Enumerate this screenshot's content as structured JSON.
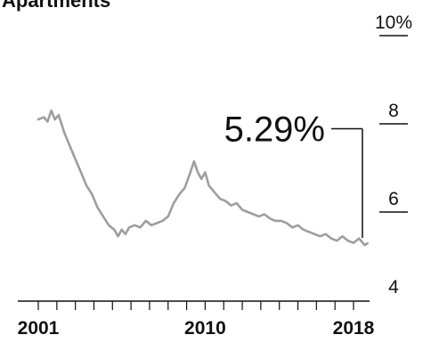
{
  "header": {
    "cut_title": "Apartments"
  },
  "chart_data": {
    "type": "line",
    "title": "",
    "subtitle": "Apartments",
    "xlabel": "",
    "ylabel": "",
    "x_tick_labels": [
      {
        "year": 2001,
        "label": "2001"
      },
      {
        "year": 2010,
        "label": "2010"
      },
      {
        "year": 2018,
        "label": "2018"
      }
    ],
    "y_tick_labels": [
      {
        "value": 10,
        "label": "10%"
      },
      {
        "value": 8,
        "label": "8"
      },
      {
        "value": 6,
        "label": "6"
      },
      {
        "value": 4,
        "label": "4"
      }
    ],
    "xlim": [
      2001,
      2019
    ],
    "ylim": [
      4,
      10
    ],
    "grid": false,
    "legend": "none",
    "line_color": "#9e9e9e",
    "annotation": {
      "label": "5.29%",
      "value": 5.29
    },
    "series": [
      {
        "values": [
          [
            2001.0,
            8.1
          ],
          [
            2001.3,
            8.15
          ],
          [
            2001.5,
            8.05
          ],
          [
            2001.7,
            8.3
          ],
          [
            2001.9,
            8.1
          ],
          [
            2002.1,
            8.2
          ],
          [
            2002.4,
            7.8
          ],
          [
            2002.7,
            7.5
          ],
          [
            2003.0,
            7.2
          ],
          [
            2003.3,
            6.9
          ],
          [
            2003.6,
            6.6
          ],
          [
            2003.9,
            6.4
          ],
          [
            2004.2,
            6.1
          ],
          [
            2004.5,
            5.9
          ],
          [
            2004.8,
            5.7
          ],
          [
            2005.1,
            5.6
          ],
          [
            2005.3,
            5.45
          ],
          [
            2005.5,
            5.6
          ],
          [
            2005.7,
            5.5
          ],
          [
            2005.9,
            5.65
          ],
          [
            2006.2,
            5.7
          ],
          [
            2006.5,
            5.65
          ],
          [
            2006.8,
            5.8
          ],
          [
            2007.1,
            5.7
          ],
          [
            2007.4,
            5.75
          ],
          [
            2007.7,
            5.8
          ],
          [
            2008.0,
            5.9
          ],
          [
            2008.3,
            6.2
          ],
          [
            2008.6,
            6.4
          ],
          [
            2008.9,
            6.55
          ],
          [
            2009.2,
            6.9
          ],
          [
            2009.4,
            7.15
          ],
          [
            2009.6,
            6.9
          ],
          [
            2009.8,
            6.75
          ],
          [
            2010.0,
            6.9
          ],
          [
            2010.2,
            6.6
          ],
          [
            2010.5,
            6.45
          ],
          [
            2010.8,
            6.3
          ],
          [
            2011.1,
            6.25
          ],
          [
            2011.4,
            6.15
          ],
          [
            2011.7,
            6.2
          ],
          [
            2012.0,
            6.05
          ],
          [
            2012.3,
            6.0
          ],
          [
            2012.6,
            5.95
          ],
          [
            2012.9,
            5.9
          ],
          [
            2013.2,
            5.95
          ],
          [
            2013.5,
            5.85
          ],
          [
            2013.8,
            5.8
          ],
          [
            2014.1,
            5.8
          ],
          [
            2014.4,
            5.75
          ],
          [
            2014.7,
            5.65
          ],
          [
            2015.0,
            5.7
          ],
          [
            2015.3,
            5.6
          ],
          [
            2015.6,
            5.55
          ],
          [
            2015.9,
            5.5
          ],
          [
            2016.2,
            5.45
          ],
          [
            2016.5,
            5.5
          ],
          [
            2016.8,
            5.4
          ],
          [
            2017.1,
            5.35
          ],
          [
            2017.4,
            5.45
          ],
          [
            2017.7,
            5.35
          ],
          [
            2018.0,
            5.3
          ],
          [
            2018.3,
            5.4
          ],
          [
            2018.6,
            5.25
          ],
          [
            2018.75,
            5.29
          ]
        ]
      }
    ]
  }
}
